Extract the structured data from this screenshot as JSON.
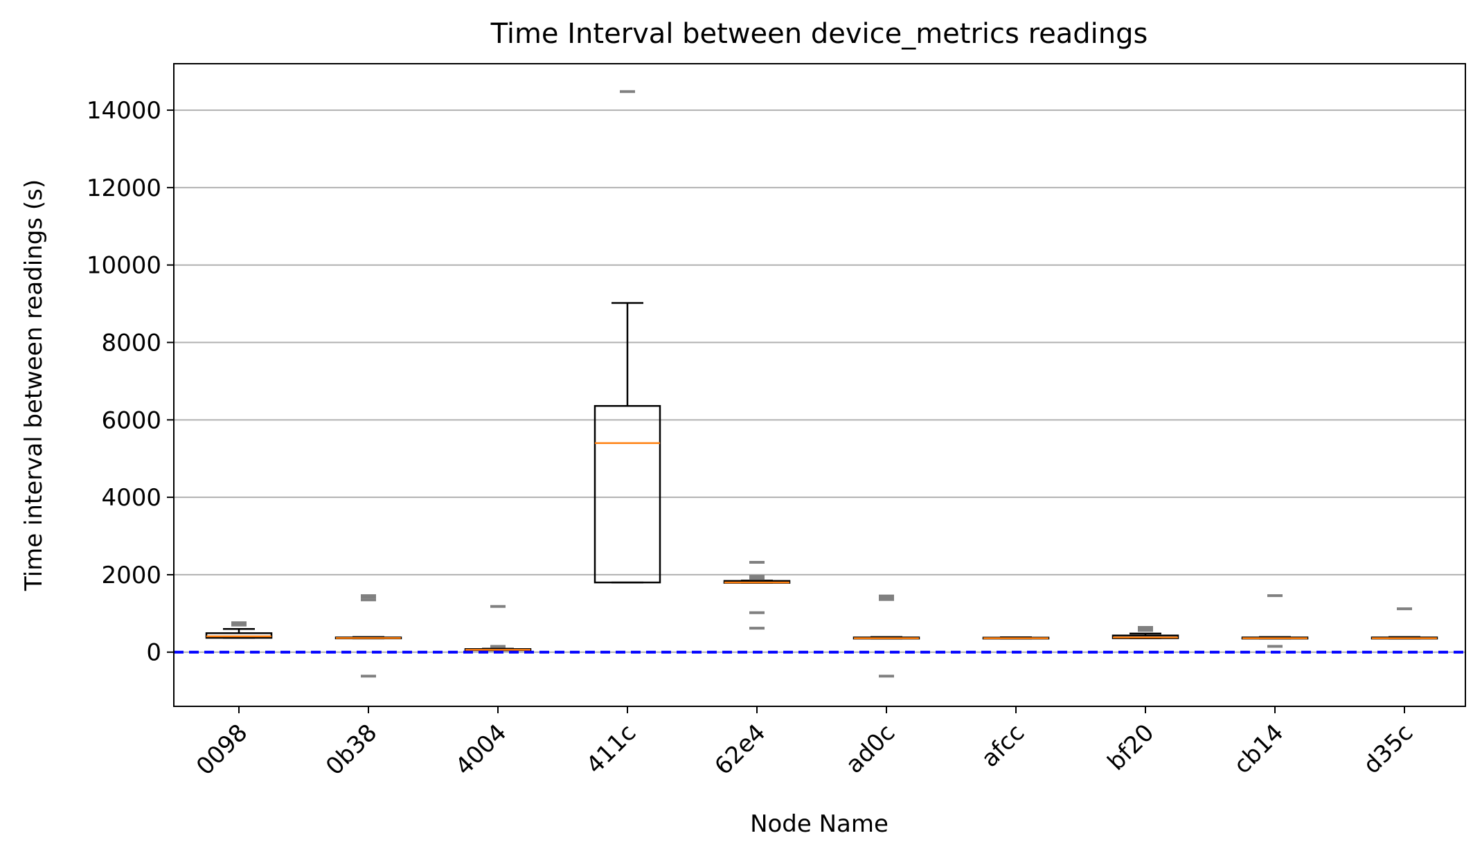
{
  "chart_data": {
    "type": "boxplot",
    "title": "Time Interval between device_metrics readings",
    "xlabel": "Node Name",
    "ylabel": "Time interval between readings (s)",
    "ylim": [
      -1400,
      15200
    ],
    "yticks": [
      0,
      2000,
      4000,
      6000,
      8000,
      10000,
      12000,
      14000
    ],
    "grid": "horizontal",
    "reference_line": {
      "y": 0,
      "style": "dashed",
      "color": "#0000ff"
    },
    "colors": {
      "box": "#000000",
      "median": "#ff7f0e",
      "outlier": "#808080",
      "grid": "#b0b0b0"
    },
    "categories": [
      "0098",
      "0b38",
      "4004",
      "411c",
      "62e4",
      "ad0c",
      "afcc",
      "bf20",
      "cb14",
      "d35c"
    ],
    "boxes": [
      {
        "name": "0098",
        "q1": 370,
        "median": 410,
        "q3": 490,
        "whisker_low": 370,
        "whisker_high": 600,
        "outliers": [
          700,
          730,
          760
        ]
      },
      {
        "name": "0b38",
        "q1": 355,
        "median": 365,
        "q3": 380,
        "whisker_low": 355,
        "whisker_high": 390,
        "outliers": [
          -620,
          1350,
          1420,
          1460
        ]
      },
      {
        "name": "4004",
        "q1": 50,
        "median": 60,
        "q3": 80,
        "whisker_low": 50,
        "whisker_high": 90,
        "outliers": [
          150,
          1180
        ]
      },
      {
        "name": "411c",
        "q1": 1800,
        "median": 5400,
        "q3": 6360,
        "whisker_low": 1800,
        "whisker_high": 9020,
        "outliers": [
          14480
        ]
      },
      {
        "name": "62e4",
        "q1": 1790,
        "median": 1800,
        "q3": 1840,
        "whisker_low": 1790,
        "whisker_high": 1850,
        "outliers": [
          620,
          1020,
          1900,
          1960,
          2320
        ]
      },
      {
        "name": "ad0c",
        "q1": 350,
        "median": 360,
        "q3": 380,
        "whisker_low": 350,
        "whisker_high": 390,
        "outliers": [
          -620,
          1360,
          1420,
          1450
        ]
      },
      {
        "name": "afcc",
        "q1": 350,
        "median": 360,
        "q3": 375,
        "whisker_low": 350,
        "whisker_high": 385,
        "outliers": []
      },
      {
        "name": "bf20",
        "q1": 360,
        "median": 380,
        "q3": 430,
        "whisker_low": 360,
        "whisker_high": 480,
        "outliers": [
          560,
          600,
          640
        ]
      },
      {
        "name": "cb14",
        "q1": 350,
        "median": 360,
        "q3": 380,
        "whisker_low": 350,
        "whisker_high": 390,
        "outliers": [
          150,
          1460
        ]
      },
      {
        "name": "d35c",
        "q1": 350,
        "median": 360,
        "q3": 380,
        "whisker_low": 350,
        "whisker_high": 390,
        "outliers": [
          1120
        ]
      }
    ]
  }
}
